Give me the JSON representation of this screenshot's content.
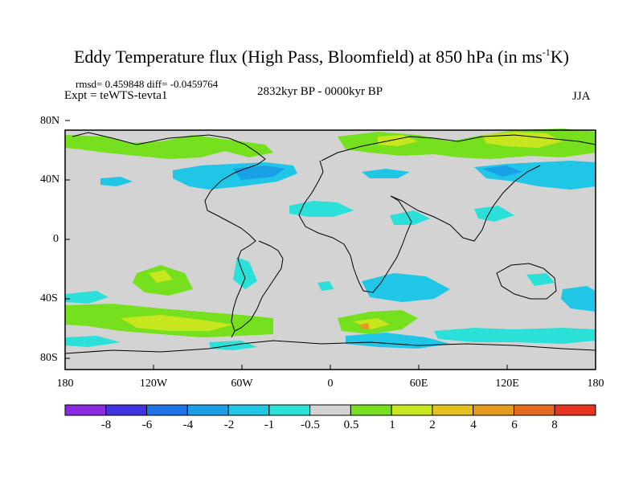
{
  "title": {
    "main": "Eddy Temperature flux (High Pass, Bloomfield) at 850 hPa (in ms",
    "sup": "-1",
    "tail": "K)"
  },
  "stats": "rmsd= 0.459848 diff= -0.0459764",
  "experiment": "Expt = teWTS-tevta1",
  "period": "2832kyr BP - 0000kyr BP",
  "season": "JJA",
  "lat_labels": [
    "80N",
    "40N",
    "0",
    "40S",
    "80S"
  ],
  "lon_labels": [
    "180",
    "120W",
    "60W",
    "0",
    "60E",
    "120E",
    "180"
  ],
  "colorbar": {
    "labels": [
      "-8",
      "-6",
      "-4",
      "-2",
      "-1",
      "-0.5",
      "0.5",
      "1",
      "2",
      "4",
      "6",
      "8"
    ],
    "colors": [
      "#8a2be2",
      "#3e35e0",
      "#1e73e8",
      "#1aa0e6",
      "#20c6e6",
      "#2be0d8",
      "#d3d3d3",
      "#76e01e",
      "#c8e61e",
      "#e6c01e",
      "#e69a1e",
      "#e66a1e",
      "#e6321e"
    ]
  },
  "map_colors": {
    "ocean": "#d3d3d3",
    "green": "#76e01e",
    "yellow": "#c8e61e",
    "cyan": "#2be0d8",
    "blue_light": "#20c6e6",
    "blue": "#1aa0e6",
    "orange": "#e69a1e"
  }
}
